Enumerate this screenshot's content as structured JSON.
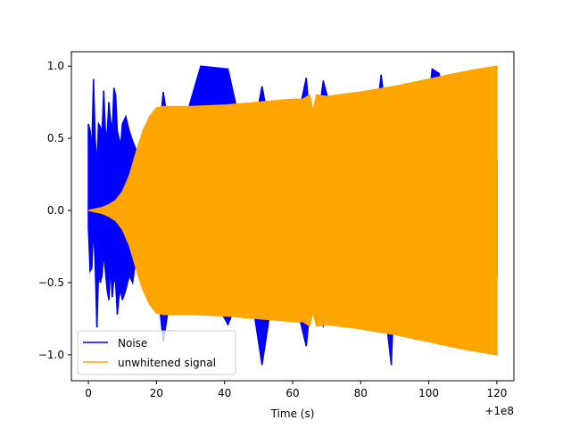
{
  "chart_data": {
    "type": "line",
    "title": "",
    "xlabel": "Time (s)",
    "ylabel": "",
    "x_offset_label": "+1e8",
    "xlim": [
      -5,
      125
    ],
    "ylim": [
      -1.18,
      1.1
    ],
    "x_ticks": [
      0,
      20,
      40,
      60,
      80,
      100,
      120
    ],
    "x_tick_labels": [
      "0",
      "20",
      "40",
      "60",
      "80",
      "100",
      "120"
    ],
    "y_ticks": [
      -1.0,
      -0.5,
      0.0,
      0.5,
      1.0
    ],
    "y_tick_labels": [
      "−1.0",
      "−0.5",
      "0.0",
      "0.5",
      "1.0"
    ],
    "grid": false,
    "legend_position": "lower-left",
    "series": [
      {
        "name": "Noise",
        "color": "#0000ff",
        "x": [
          0,
          0.5,
          1,
          1.5,
          2,
          2.5,
          3,
          3.5,
          4,
          4.5,
          5,
          5.5,
          6,
          6.5,
          7,
          7.5,
          8,
          8.5,
          9,
          9.5,
          10,
          11,
          12,
          13,
          14,
          15,
          16,
          17,
          18,
          19,
          20,
          22,
          25,
          33,
          41,
          47,
          51,
          55,
          59,
          64,
          66,
          69,
          75,
          83,
          86,
          89,
          90,
          98,
          101,
          103,
          108,
          113,
          118,
          120
        ],
        "min_envelope": [
          -0.13,
          -0.42,
          -0.4,
          -0.1,
          -0.38,
          -0.81,
          -0.43,
          -0.5,
          -0.45,
          -0.3,
          -0.42,
          -0.55,
          -0.62,
          -0.38,
          -0.6,
          -0.47,
          -0.5,
          -0.72,
          -0.6,
          -0.55,
          -0.62,
          -0.55,
          -0.45,
          -0.5,
          -0.32,
          -0.38,
          -0.4,
          -0.42,
          -0.44,
          -0.45,
          -0.46,
          -0.91,
          -0.45,
          -0.45,
          -0.79,
          -0.45,
          -1.07,
          -0.45,
          -0.45,
          -0.94,
          -0.45,
          -0.8,
          -0.45,
          -0.45,
          -0.45,
          -1.07,
          -0.45,
          -0.45,
          -0.45,
          -0.45,
          -0.45,
          -0.45,
          -0.45,
          -0.45
        ],
        "max_envelope": [
          0.6,
          0.55,
          0.42,
          0.91,
          0.5,
          0.32,
          0.6,
          0.58,
          0.52,
          0.83,
          0.55,
          0.52,
          0.75,
          0.62,
          0.55,
          0.85,
          0.8,
          0.55,
          0.5,
          0.45,
          0.6,
          0.65,
          0.55,
          0.48,
          0.42,
          0.4,
          0.38,
          0.36,
          0.35,
          0.35,
          0.35,
          0.82,
          0.35,
          1.0,
          0.98,
          0.35,
          0.86,
          0.35,
          0.35,
          0.92,
          0.35,
          0.9,
          0.35,
          0.35,
          0.94,
          0.35,
          0.35,
          0.35,
          0.98,
          0.95,
          0.35,
          0.35,
          0.35,
          0.35
        ]
      },
      {
        "name": "unwhitened signal",
        "color": "#ffa500",
        "x": [
          0,
          2,
          4,
          6,
          8,
          10,
          12,
          14,
          16,
          18,
          20,
          22,
          30,
          40,
          50,
          60,
          63,
          65,
          66,
          67,
          70,
          80,
          90,
          100,
          110,
          115,
          120
        ],
        "min_envelope": [
          0,
          -0.01,
          -0.02,
          -0.04,
          -0.07,
          -0.13,
          -0.24,
          -0.4,
          -0.55,
          -0.65,
          -0.71,
          -0.72,
          -0.72,
          -0.73,
          -0.75,
          -0.77,
          -0.77,
          -0.8,
          -0.7,
          -0.8,
          -0.79,
          -0.82,
          -0.86,
          -0.91,
          -0.96,
          -0.98,
          -1.0
        ],
        "max_envelope": [
          0,
          0.01,
          0.02,
          0.04,
          0.07,
          0.13,
          0.24,
          0.4,
          0.55,
          0.65,
          0.71,
          0.72,
          0.72,
          0.73,
          0.75,
          0.77,
          0.77,
          0.8,
          0.69,
          0.8,
          0.79,
          0.82,
          0.86,
          0.91,
          0.96,
          0.98,
          1.0
        ]
      }
    ]
  }
}
